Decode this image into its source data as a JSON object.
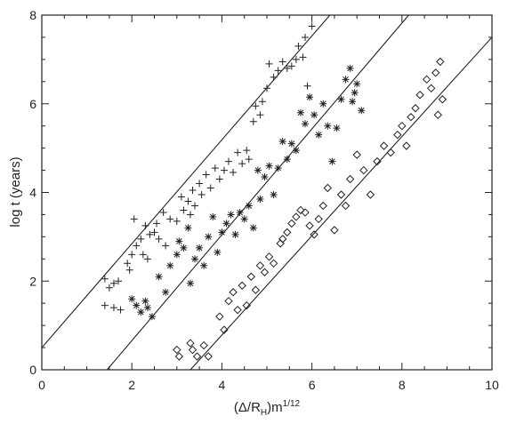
{
  "chart_data": {
    "type": "scatter",
    "xlabel": "(Δ/R_H)m^1/12",
    "ylabel": "log t (years)",
    "xlim": [
      0,
      10
    ],
    "ylim": [
      0,
      8
    ],
    "x_ticks": [
      "0",
      "2",
      "4",
      "6",
      "8",
      "10"
    ],
    "y_ticks": [
      "0",
      "2",
      "4",
      "6",
      "8"
    ],
    "grid": false,
    "series": [
      {
        "marker": "plus",
        "points": [
          [
            1.4,
            2.05
          ],
          [
            1.5,
            1.85
          ],
          [
            1.6,
            1.95
          ],
          [
            1.7,
            2.0
          ],
          [
            1.4,
            1.45
          ],
          [
            1.6,
            1.4
          ],
          [
            1.75,
            1.35
          ],
          [
            1.9,
            2.4
          ],
          [
            2.0,
            2.6
          ],
          [
            1.95,
            2.25
          ],
          [
            2.05,
            3.4
          ],
          [
            2.1,
            2.8
          ],
          [
            2.2,
            2.95
          ],
          [
            2.25,
            2.6
          ],
          [
            2.3,
            3.25
          ],
          [
            2.35,
            2.5
          ],
          [
            2.4,
            3.05
          ],
          [
            2.5,
            3.1
          ],
          [
            2.55,
            3.3
          ],
          [
            2.6,
            2.95
          ],
          [
            2.7,
            3.55
          ],
          [
            2.75,
            2.8
          ],
          [
            2.85,
            3.4
          ],
          [
            3.0,
            3.35
          ],
          [
            3.1,
            3.9
          ],
          [
            3.15,
            3.6
          ],
          [
            3.25,
            3.8
          ],
          [
            3.3,
            3.5
          ],
          [
            3.35,
            4.05
          ],
          [
            3.4,
            3.7
          ],
          [
            3.5,
            4.2
          ],
          [
            3.55,
            3.95
          ],
          [
            3.65,
            4.4
          ],
          [
            3.75,
            4.1
          ],
          [
            3.85,
            4.55
          ],
          [
            3.95,
            4.3
          ],
          [
            4.05,
            4.5
          ],
          [
            4.15,
            4.7
          ],
          [
            4.25,
            4.45
          ],
          [
            4.35,
            4.9
          ],
          [
            4.45,
            4.65
          ],
          [
            4.55,
            4.95
          ],
          [
            4.6,
            4.75
          ],
          [
            4.7,
            5.6
          ],
          [
            4.75,
            5.95
          ],
          [
            4.85,
            5.75
          ],
          [
            4.9,
            6.05
          ],
          [
            5.0,
            6.35
          ],
          [
            5.05,
            6.9
          ],
          [
            5.15,
            6.6
          ],
          [
            5.25,
            6.75
          ],
          [
            5.35,
            6.95
          ],
          [
            5.45,
            6.8
          ],
          [
            5.55,
            6.85
          ],
          [
            5.65,
            7.0
          ],
          [
            5.7,
            7.3
          ],
          [
            5.8,
            7.05
          ],
          [
            5.9,
            6.4
          ],
          [
            6.0,
            7.75
          ],
          [
            5.85,
            7.5
          ]
        ]
      },
      {
        "marker": "asterisk",
        "points": [
          [
            2.0,
            1.6
          ],
          [
            2.1,
            1.45
          ],
          [
            2.2,
            1.3
          ],
          [
            2.3,
            1.55
          ],
          [
            2.35,
            1.4
          ],
          [
            2.45,
            1.2
          ],
          [
            2.6,
            2.1
          ],
          [
            2.75,
            1.75
          ],
          [
            2.85,
            2.35
          ],
          [
            3.0,
            2.6
          ],
          [
            3.05,
            2.9
          ],
          [
            3.15,
            2.75
          ],
          [
            3.25,
            3.2
          ],
          [
            3.3,
            1.95
          ],
          [
            3.4,
            2.5
          ],
          [
            3.5,
            2.75
          ],
          [
            3.6,
            2.35
          ],
          [
            3.7,
            3.0
          ],
          [
            3.8,
            3.45
          ],
          [
            3.9,
            2.65
          ],
          [
            4.0,
            3.1
          ],
          [
            4.1,
            3.3
          ],
          [
            4.2,
            3.5
          ],
          [
            4.3,
            3.05
          ],
          [
            4.4,
            3.55
          ],
          [
            4.5,
            3.4
          ],
          [
            4.6,
            3.7
          ],
          [
            4.7,
            3.2
          ],
          [
            4.8,
            4.5
          ],
          [
            4.85,
            3.85
          ],
          [
            4.95,
            4.35
          ],
          [
            5.05,
            4.6
          ],
          [
            5.15,
            3.95
          ],
          [
            5.25,
            4.55
          ],
          [
            5.35,
            5.15
          ],
          [
            5.45,
            4.75
          ],
          [
            5.55,
            5.1
          ],
          [
            5.65,
            4.95
          ],
          [
            5.75,
            5.8
          ],
          [
            5.85,
            5.55
          ],
          [
            5.95,
            6.15
          ],
          [
            6.05,
            5.75
          ],
          [
            6.15,
            5.3
          ],
          [
            6.25,
            6.0
          ],
          [
            6.35,
            5.5
          ],
          [
            6.45,
            4.7
          ],
          [
            6.55,
            5.45
          ],
          [
            6.65,
            6.1
          ],
          [
            6.75,
            6.55
          ],
          [
            6.85,
            6.8
          ],
          [
            7.0,
            6.45
          ],
          [
            7.1,
            5.85
          ],
          [
            6.95,
            6.25
          ],
          [
            6.9,
            6.05
          ]
        ]
      },
      {
        "marker": "diamond",
        "points": [
          [
            3.0,
            0.45
          ],
          [
            3.05,
            0.3
          ],
          [
            3.3,
            0.6
          ],
          [
            3.35,
            0.45
          ],
          [
            3.45,
            0.3
          ],
          [
            3.6,
            0.55
          ],
          [
            3.7,
            0.3
          ],
          [
            3.95,
            1.2
          ],
          [
            4.05,
            0.9
          ],
          [
            4.15,
            1.55
          ],
          [
            4.25,
            1.75
          ],
          [
            4.35,
            1.35
          ],
          [
            4.45,
            1.9
          ],
          [
            4.55,
            1.45
          ],
          [
            4.65,
            2.1
          ],
          [
            4.75,
            1.8
          ],
          [
            4.85,
            2.35
          ],
          [
            4.95,
            2.2
          ],
          [
            5.05,
            2.55
          ],
          [
            5.15,
            2.4
          ],
          [
            5.3,
            2.85
          ],
          [
            5.35,
            2.95
          ],
          [
            5.45,
            3.1
          ],
          [
            5.55,
            3.3
          ],
          [
            5.65,
            3.45
          ],
          [
            5.75,
            3.6
          ],
          [
            5.85,
            3.55
          ],
          [
            5.95,
            3.25
          ],
          [
            6.05,
            3.05
          ],
          [
            6.15,
            3.4
          ],
          [
            6.25,
            3.7
          ],
          [
            6.35,
            4.1
          ],
          [
            6.5,
            3.15
          ],
          [
            6.65,
            3.95
          ],
          [
            6.75,
            3.7
          ],
          [
            6.85,
            4.3
          ],
          [
            7.0,
            4.85
          ],
          [
            7.15,
            4.5
          ],
          [
            7.3,
            3.95
          ],
          [
            7.45,
            4.7
          ],
          [
            7.6,
            5.05
          ],
          [
            7.75,
            4.9
          ],
          [
            7.9,
            5.3
          ],
          [
            8.0,
            5.5
          ],
          [
            8.1,
            5.05
          ],
          [
            8.2,
            5.7
          ],
          [
            8.3,
            5.9
          ],
          [
            8.4,
            6.2
          ],
          [
            8.55,
            6.55
          ],
          [
            8.65,
            6.35
          ],
          [
            8.75,
            6.7
          ],
          [
            8.85,
            6.95
          ],
          [
            8.9,
            6.1
          ],
          [
            8.8,
            5.75
          ]
        ]
      }
    ],
    "fit_lines": [
      {
        "x": [
          0,
          6.4
        ],
        "y": [
          0.5,
          8.0
        ]
      },
      {
        "x": [
          1.45,
          8.15
        ],
        "y": [
          0.0,
          8.0
        ]
      },
      {
        "x": [
          3.3,
          10.0
        ],
        "y": [
          0.0,
          7.5
        ]
      }
    ]
  }
}
